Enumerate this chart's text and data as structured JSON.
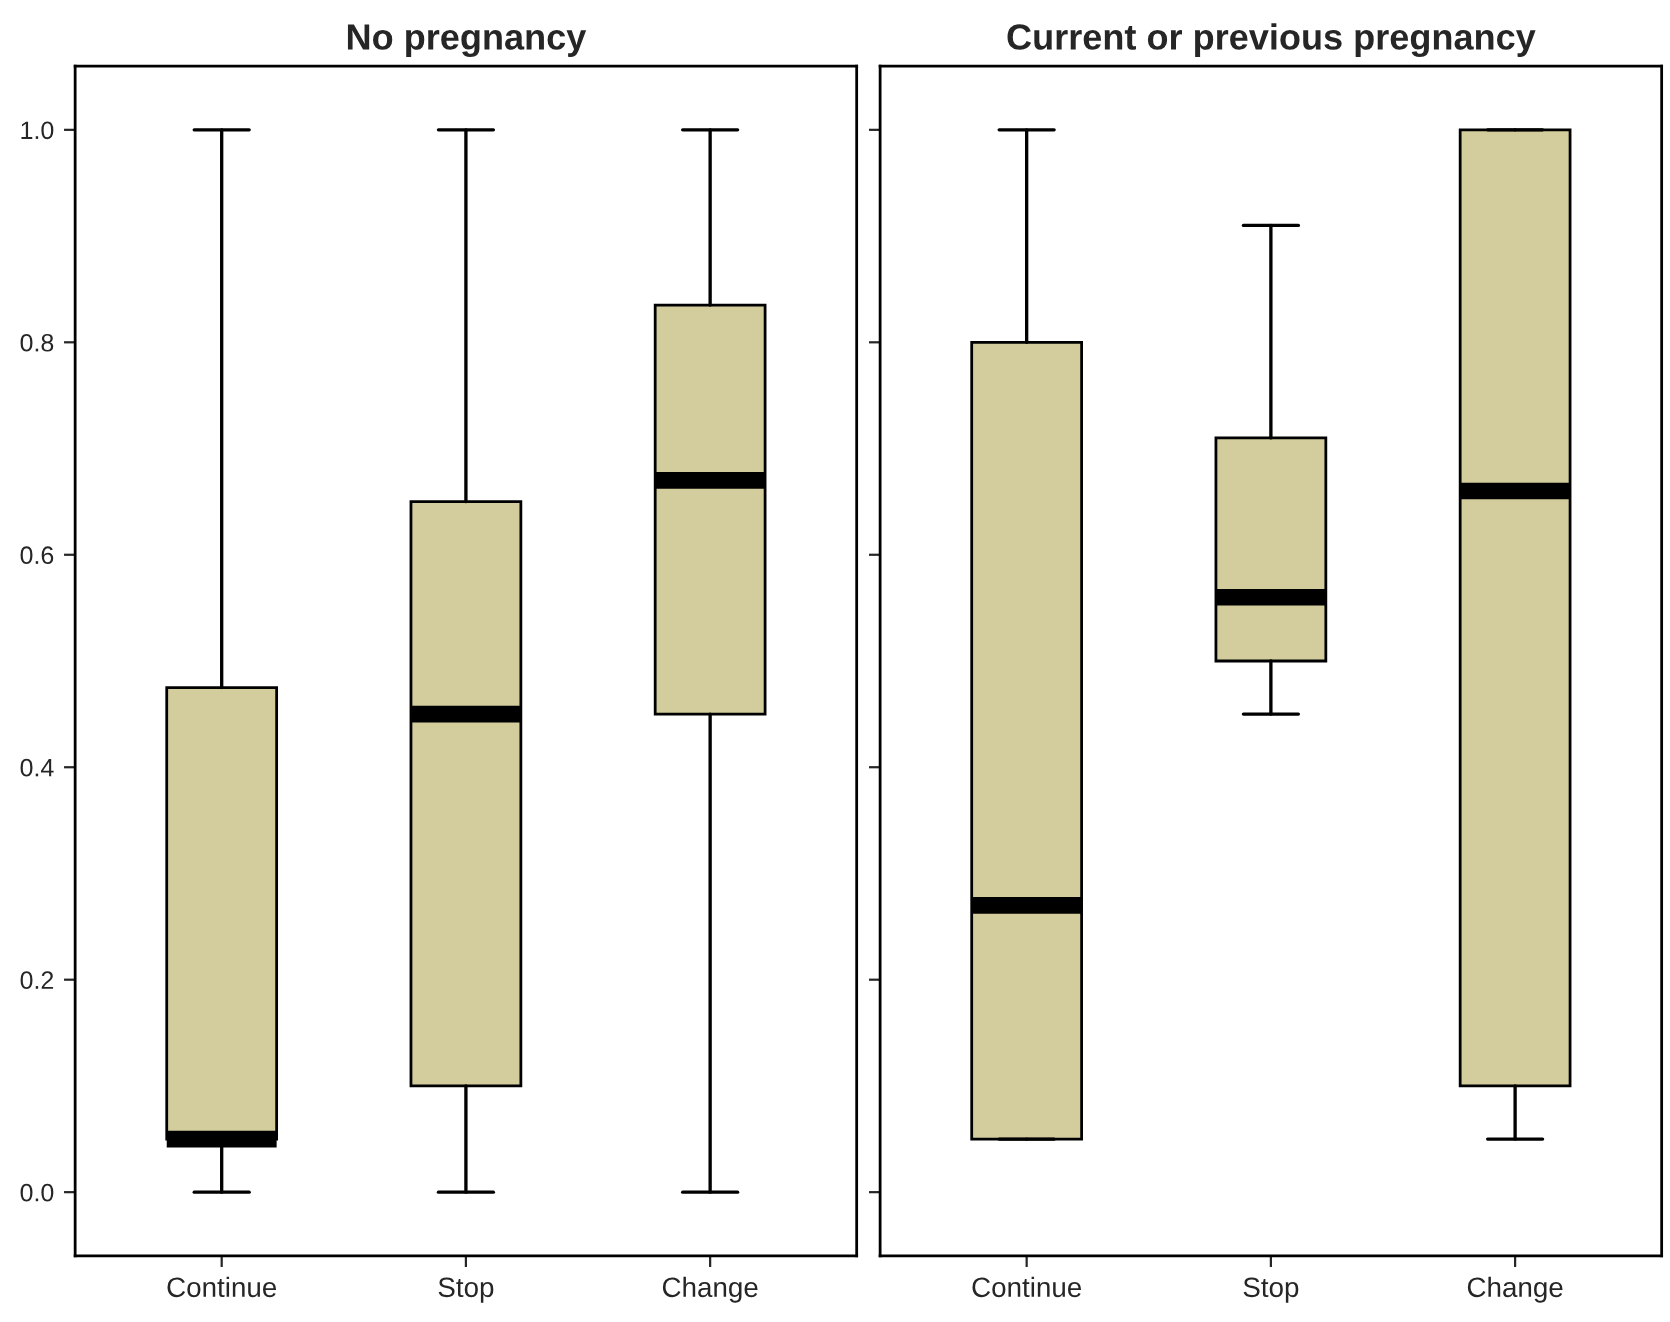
{
  "chart_data": [
    {
      "type": "box",
      "title": "No pregnancy",
      "categories": [
        "Continue",
        "Stop",
        "Change"
      ],
      "series": [
        {
          "color": "#d3cd9d",
          "boxes": [
            {
              "low": 0.0,
              "q1": 0.05,
              "median": 0.05,
              "q3": 0.475,
              "high": 1.0
            },
            {
              "low": 0.0,
              "q1": 0.1,
              "median": 0.45,
              "q3": 0.65,
              "high": 1.0
            },
            {
              "low": 0.0,
              "q1": 0.45,
              "median": 0.67,
              "q3": 0.835,
              "high": 1.0
            }
          ]
        }
      ],
      "ylim": [
        -0.06,
        1.06
      ],
      "yticks": [
        {
          "value": 0,
          "label": "0.0"
        },
        0.2,
        0.4,
        0.6,
        0.8,
        {
          "value": 1,
          "label": "1.0"
        }
      ]
    },
    {
      "type": "box",
      "title": "Current or previous pregnancy",
      "categories": [
        "Continue",
        "Stop",
        "Change"
      ],
      "series": [
        {
          "color": "#d3cd9d",
          "boxes": [
            {
              "low": 0.05,
              "q1": 0.05,
              "median": 0.27,
              "q3": 0.8,
              "high": 1.0
            },
            {
              "low": 0.45,
              "q1": 0.5,
              "median": 0.56,
              "q3": 0.71,
              "high": 0.91
            },
            {
              "low": 0.05,
              "q1": 0.1,
              "median": 0.66,
              "q3": 1.0,
              "high": 1.0
            }
          ]
        }
      ],
      "ylim": [
        -0.06,
        1.06
      ],
      "yticks": [
        {
          "value": 0.0,
          "label": null
        },
        {
          "value": 0.2,
          "label": null
        },
        {
          "value": 0.4,
          "label": null
        },
        {
          "value": 0.6,
          "label": null
        },
        {
          "value": 0.8,
          "label": null
        },
        {
          "value": 1.0,
          "label": null
        }
      ],
      "tick_labels": "x"
    }
  ]
}
